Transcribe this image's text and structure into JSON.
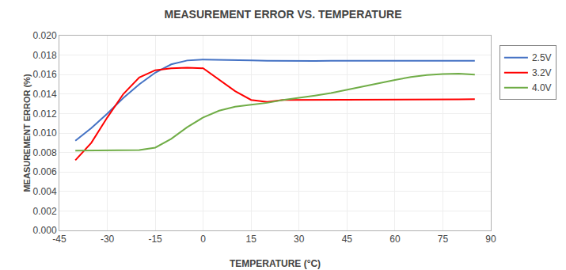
{
  "chart_data": {
    "type": "line",
    "title": "MEASUREMENT ERROR VS. TEMPERATURE",
    "x_label": "TEMPERATURE (°C)",
    "y_label": "MEASUREMENT ERROR (%)",
    "x": [
      -40,
      -35,
      -30,
      -25,
      -20,
      -15,
      -10,
      -5,
      0,
      5,
      10,
      15,
      20,
      25,
      30,
      35,
      40,
      45,
      50,
      55,
      60,
      65,
      70,
      75,
      80,
      85
    ],
    "series": [
      {
        "name": "2.5V",
        "color": "#4472C4",
        "values": [
          0.0092,
          0.0105,
          0.012,
          0.0136,
          0.015,
          0.0162,
          0.01705,
          0.01745,
          0.01755,
          0.0175,
          0.01748,
          0.01745,
          0.01742,
          0.0174,
          0.0174,
          0.0174,
          0.01742,
          0.01742,
          0.01742,
          0.01742,
          0.0174,
          0.0174,
          0.01738,
          0.01738,
          0.0174,
          0.01742
        ]
      },
      {
        "name": "3.2V",
        "color": "#FF0000",
        "values": [
          0.0072,
          0.009,
          0.0116,
          0.014,
          0.0157,
          0.01645,
          0.01665,
          0.0167,
          0.01665,
          0.0155,
          0.0143,
          0.0134,
          0.0132,
          0.0134,
          0.0134,
          0.0134,
          0.0134,
          0.0134,
          0.0134,
          0.01342,
          0.01342,
          0.01342,
          0.01344,
          0.01344,
          0.01346,
          0.01348
        ]
      },
      {
        "name": "4.0V",
        "color": "#70AD47",
        "values": [
          0.0082,
          0.0082,
          0.0082,
          0.0082,
          0.00825,
          0.0085,
          0.0094,
          0.0106,
          0.0116,
          0.0123,
          0.0127,
          0.0129,
          0.0131,
          0.0134,
          0.0136,
          0.01385,
          0.0141,
          0.01445,
          0.01475,
          0.0151,
          0.01545,
          0.01575,
          0.01595,
          0.01605,
          0.0161,
          0.016
        ]
      }
    ],
    "xlim": [
      -45,
      90
    ],
    "xticks": [
      -45,
      -30,
      -15,
      0,
      15,
      30,
      45,
      60,
      75,
      90
    ],
    "ylim": [
      0.0,
      0.02
    ],
    "yticks": [
      {
        "value": 0.0,
        "label": "0.000"
      },
      0.002,
      0.004,
      0.006,
      0.008,
      {
        "value": 0.01,
        "label": "0.010"
      },
      0.012,
      0.014,
      0.016,
      0.018,
      {
        "value": 0.02,
        "label": "0.020"
      }
    ],
    "grid": true,
    "legend": "right"
  }
}
